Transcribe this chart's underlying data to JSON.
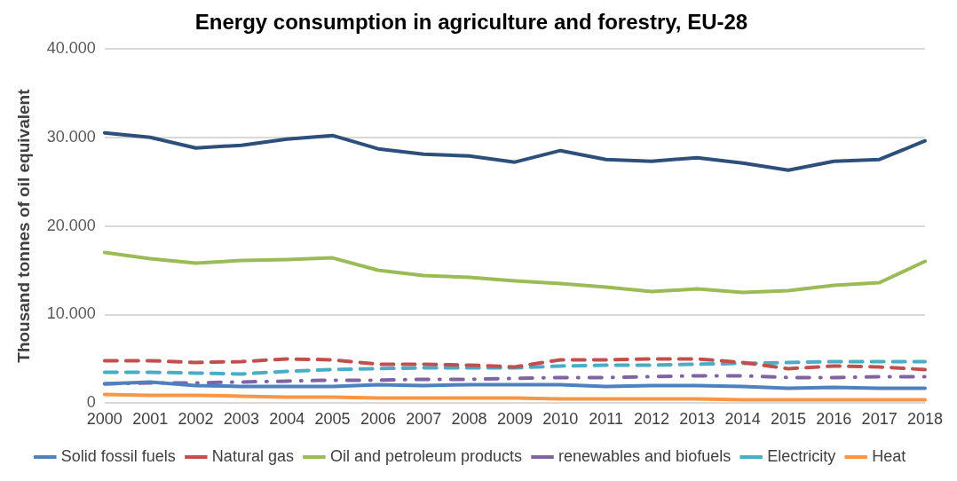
{
  "chart_data": {
    "type": "line",
    "title": "Energy consumption in agriculture and forestry, EU-28",
    "ylabel": "Thousand tonnes of oil equivalent",
    "categories": [
      "2000",
      "2001",
      "2002",
      "2003",
      "2004",
      "2005",
      "2006",
      "2007",
      "2008",
      "2009",
      "2010",
      "2011",
      "2012",
      "2013",
      "2014",
      "2015",
      "2016",
      "2017",
      "2018"
    ],
    "series": [
      {
        "color": "#2e4f7a",
        "line_style": "solid",
        "values": [
          30500,
          30000,
          28800,
          29100,
          29800,
          30200,
          28700,
          28100,
          27900,
          27200,
          28500,
          27500,
          27300,
          27700,
          27100,
          26300,
          27300,
          27500,
          29600
        ]
      },
      {
        "name": "Solid fossil fuels",
        "color": "#4f81bd",
        "line_style": "solid",
        "values": [
          2200,
          2400,
          2000,
          1900,
          1900,
          1900,
          2100,
          2000,
          2100,
          2100,
          2100,
          1900,
          2000,
          2000,
          1900,
          1700,
          1800,
          1700,
          1700
        ]
      },
      {
        "name": "Natural gas",
        "color": "#c0504d",
        "line_style": "dashed",
        "values": [
          4800,
          4800,
          4600,
          4700,
          5000,
          4900,
          4400,
          4400,
          4300,
          4100,
          4900,
          4900,
          5000,
          5000,
          4600,
          3900,
          4200,
          4100,
          3800
        ]
      },
      {
        "name": "Oil and petroleum products",
        "color": "#9bbb59",
        "line_style": "solid",
        "values": [
          17000,
          16300,
          15800,
          16100,
          16200,
          16400,
          15000,
          14400,
          14200,
          13800,
          13500,
          13100,
          12600,
          12900,
          12500,
          12700,
          13300,
          13600,
          16000
        ]
      },
      {
        "name": "renewables and biofuels",
        "color": "#8064a2",
        "line_style": "dotted",
        "values": [
          2200,
          2300,
          2300,
          2400,
          2500,
          2600,
          2600,
          2700,
          2700,
          2800,
          2900,
          2900,
          3000,
          3100,
          3100,
          2900,
          2900,
          3000,
          3000
        ]
      },
      {
        "name": "Electricity",
        "color": "#4bacc6",
        "line_style": "dashed",
        "values": [
          3500,
          3500,
          3400,
          3300,
          3600,
          3800,
          3900,
          4000,
          4000,
          4000,
          4200,
          4300,
          4300,
          4400,
          4500,
          4600,
          4700,
          4700,
          4700
        ]
      },
      {
        "name": "Heat",
        "color": "#f79646",
        "line_style": "solid",
        "values": [
          1000,
          900,
          900,
          800,
          700,
          700,
          600,
          600,
          600,
          600,
          500,
          500,
          500,
          500,
          400,
          400,
          400,
          400,
          400
        ]
      }
    ],
    "ylim": [
      0,
      40000
    ],
    "yticks": [
      0,
      {
        "value": 10000,
        "label": "10.000"
      },
      {
        "value": 20000,
        "label": "20.000"
      },
      {
        "value": 30000,
        "label": "30.000"
      },
      {
        "value": 40000,
        "label": "40.000"
      }
    ],
    "grid": "y",
    "legend": "bottom",
    "marker": "none"
  }
}
